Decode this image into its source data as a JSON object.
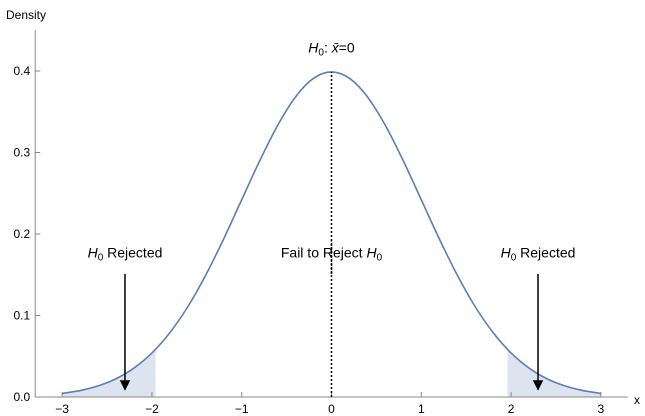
{
  "chart_data": {
    "type": "line",
    "x_label": "x",
    "y_label": "Density",
    "xlim": [
      -3.3,
      3.3
    ],
    "ylim": [
      0,
      0.45
    ],
    "xticks": [
      {
        "value": -3,
        "label": "−3"
      },
      {
        "value": -2,
        "label": "−2"
      },
      {
        "value": -1,
        "label": "−1"
      },
      0,
      1,
      2,
      3
    ],
    "yticks": [
      {
        "value": 0,
        "label": "0.0"
      },
      0.1,
      0.2,
      0.3,
      0.4
    ],
    "series": [
      {
        "color": "#5b7fb5",
        "x": [
          -3,
          -2.8,
          -2.6,
          -2.4,
          -2.2,
          -2,
          -1.8,
          -1.6,
          -1.4,
          -1.2,
          -1,
          -0.8,
          -0.6,
          -0.4,
          -0.2,
          0,
          0.2,
          0.4,
          0.6,
          0.8,
          1,
          1.2,
          1.4,
          1.6,
          1.8,
          2,
          2.2,
          2.4,
          2.6,
          2.8,
          3
        ],
        "values": [
          0.0044,
          0.0079,
          0.0136,
          0.0224,
          0.0355,
          0.054,
          0.079,
          0.1109,
          0.1497,
          0.1942,
          0.242,
          0.2897,
          0.3332,
          0.3683,
          0.391,
          0.3989,
          0.391,
          0.3683,
          0.3332,
          0.2897,
          0.242,
          0.1942,
          0.1497,
          0.1109,
          0.079,
          0.054,
          0.0355,
          0.0224,
          0.0136,
          0.0079,
          0.0044
        ]
      }
    ],
    "areas": [
      {
        "color": "#dde3ef",
        "x": [
          -3,
          -2.8,
          -2.6,
          -2.4,
          -2.2,
          -2,
          -1.96
        ],
        "values": [
          0.0044,
          0.0079,
          0.0136,
          0.0224,
          0.0355,
          0.054,
          0.0584
        ]
      },
      {
        "color": "#dde3ef",
        "x": [
          1.96,
          2,
          2.2,
          2.4,
          2.6,
          2.8,
          3
        ],
        "values": [
          0.0584,
          0.054,
          0.0355,
          0.0224,
          0.0136,
          0.0079,
          0.0044
        ]
      }
    ],
    "annotations": [
      {
        "x": 0,
        "y": 0.423,
        "parts": [
          {
            "text": "H",
            "italic": true
          },
          {
            "text": "0",
            "sub": true
          },
          {
            "text": ": "
          },
          {
            "text": "x̄",
            "italic": true
          },
          {
            "text": "=0"
          }
        ]
      },
      {
        "x": -2.3,
        "y": 0.171,
        "parts": [
          {
            "text": "H",
            "italic": true
          },
          {
            "text": "0",
            "sub": true
          },
          {
            "text": " Rejected"
          }
        ]
      },
      {
        "x": 0,
        "y": 0.171,
        "parts": [
          {
            "text": "Fail to Reject "
          },
          {
            "text": "H",
            "italic": true
          },
          {
            "text": "0",
            "sub": true
          }
        ]
      },
      {
        "x": 2.3,
        "y": 0.171,
        "parts": [
          {
            "text": "H",
            "italic": true
          },
          {
            "text": "0",
            "sub": true
          },
          {
            "text": " Rejected"
          }
        ]
      }
    ],
    "arrows": [
      {
        "x": -2.3,
        "y": [
          0.151,
          0.009
        ]
      },
      {
        "x": 2.3,
        "y": [
          0.151,
          0.009
        ]
      }
    ],
    "guides": [
      {
        "x": 0,
        "y": [
          0,
          0.3989
        ],
        "style": "dotted"
      },
      {
        "x": 0,
        "y": [
          0.151,
          0.191
        ],
        "style": "dotted"
      }
    ]
  }
}
